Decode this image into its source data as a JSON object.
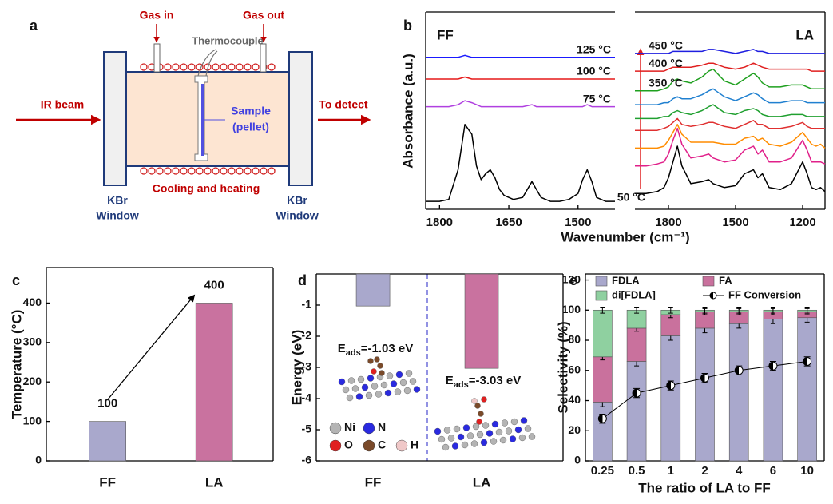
{
  "panel_labels": [
    "a",
    "b",
    "c",
    "d",
    "e"
  ],
  "diagram": {
    "gas_in": "Gas in",
    "gas_out": "Gas out",
    "thermocouple": "Thermocouple",
    "ir_beam": "IR beam",
    "sample": "Sample",
    "pellet": "(pellet)",
    "to_detect": "To detect",
    "cooling": "Cooling and heating",
    "kbr_left": "KBr",
    "window_left": "Window",
    "kbr_right": "KBr",
    "window_right": "Window"
  },
  "chart_data": [
    {
      "type": "line",
      "title": "FF",
      "ylabel": "Absorbance (a.u.)",
      "xlabel": "Wavenumber (cm⁻¹)",
      "xlim": [
        1830,
        1420
      ],
      "xticks": [
        1800,
        1650,
        1500
      ],
      "ylim": [
        0,
        100
      ],
      "x": [
        1830,
        1800,
        1780,
        1760,
        1745,
        1730,
        1720,
        1710,
        1700,
        1690,
        1680,
        1670,
        1660,
        1640,
        1620,
        1600,
        1590,
        1580,
        1570,
        1560,
        1540,
        1520,
        1500,
        1490,
        1480,
        1470,
        1460,
        1440,
        1420
      ],
      "series": [
        {
          "color": "#000000",
          "values": [
            4,
            4,
            5,
            20,
            43,
            38,
            22,
            15,
            18,
            20,
            16,
            10,
            7,
            5,
            6,
            14,
            10,
            6,
            5,
            4,
            4,
            5,
            8,
            15,
            20,
            14,
            6,
            4,
            4
          ]
        },
        {
          "name": "75 °C",
          "color": "#b040e0",
          "values": [
            52,
            52,
            52,
            53,
            55,
            54,
            53,
            52,
            52,
            52,
            52,
            52,
            52,
            52,
            52,
            53,
            52,
            52,
            52,
            52,
            52,
            52,
            52,
            52,
            53,
            52,
            52,
            52,
            52
          ]
        },
        {
          "name": "100 °C",
          "color": "#e61919",
          "values": [
            66,
            66,
            66,
            66,
            67,
            66,
            66,
            66,
            66,
            66,
            66,
            66,
            66,
            66,
            66,
            66,
            66,
            66,
            66,
            66,
            66,
            66,
            66,
            66,
            66,
            66,
            66,
            66,
            66
          ]
        },
        {
          "name": "125 °C",
          "color": "#1a1aff",
          "values": [
            77,
            77,
            77,
            77,
            78,
            77,
            77,
            77,
            77,
            77,
            77,
            77,
            77,
            77,
            77,
            77,
            77,
            77,
            77,
            77,
            77,
            77,
            77,
            77,
            77,
            77,
            77,
            77,
            77
          ]
        }
      ]
    },
    {
      "type": "line",
      "title": "LA",
      "xlim": [
        1950,
        1100
      ],
      "xticks": [
        1800,
        1500,
        1200
      ],
      "ylim": [
        0,
        100
      ],
      "x": [
        1950,
        1900,
        1850,
        1820,
        1800,
        1780,
        1760,
        1740,
        1700,
        1650,
        1620,
        1600,
        1550,
        1500,
        1460,
        1420,
        1400,
        1380,
        1350,
        1300,
        1250,
        1200,
        1180,
        1160,
        1140,
        1120,
        1100
      ],
      "series": [
        {
          "name": "50 °C",
          "color": "#000000",
          "values": [
            8,
            8,
            9,
            11,
            16,
            24,
            32,
            22,
            13,
            14,
            15,
            13,
            11,
            12,
            18,
            20,
            16,
            18,
            11,
            10,
            13,
            24,
            18,
            11,
            10,
            11,
            9
          ]
        },
        {
          "color": "#e0208a",
          "values": [
            22,
            22,
            23,
            24,
            28,
            35,
            41,
            33,
            26,
            27,
            28,
            26,
            24,
            25,
            30,
            32,
            28,
            30,
            24,
            24,
            26,
            35,
            30,
            24,
            24,
            24,
            23
          ]
        },
        {
          "color": "#ff8c00",
          "values": [
            31,
            31,
            31,
            32,
            35,
            39,
            43,
            38,
            34,
            34,
            34,
            34,
            33,
            33,
            36,
            37,
            35,
            36,
            33,
            32,
            34,
            39,
            36,
            33,
            32,
            33,
            31
          ]
        },
        {
          "color": "#e03030",
          "values": [
            40,
            40,
            40,
            41,
            42,
            44,
            46,
            43,
            42,
            43,
            44,
            44,
            42,
            41,
            43,
            45,
            43,
            43,
            41,
            41,
            42,
            44,
            42,
            41,
            41,
            41,
            41
          ]
        },
        {
          "color": "#20a030",
          "values": [
            46,
            46,
            46,
            47,
            47,
            49,
            50,
            49,
            48,
            50,
            52,
            53,
            49,
            48,
            50,
            51,
            50,
            48,
            47,
            47,
            48,
            48,
            47,
            47,
            47,
            47,
            47
          ]
        },
        {
          "color": "#2080d0",
          "values": [
            53,
            53,
            53,
            54,
            54,
            56,
            57,
            56,
            56,
            58,
            60,
            61,
            57,
            55,
            57,
            59,
            58,
            56,
            54,
            54,
            55,
            55,
            54,
            54,
            54,
            54,
            54
          ]
        },
        {
          "name": "350 °C",
          "color": "#1fa01f",
          "values": [
            60,
            60,
            60,
            61,
            62,
            65,
            66,
            65,
            64,
            67,
            70,
            71,
            65,
            63,
            66,
            69,
            67,
            64,
            62,
            62,
            63,
            63,
            62,
            61,
            61,
            61,
            61
          ]
        },
        {
          "name": "400 °C",
          "color": "#e01f1f",
          "values": [
            70,
            70,
            70,
            70,
            71,
            72,
            72,
            72,
            72,
            73,
            74,
            74,
            72,
            71,
            72,
            74,
            73,
            72,
            71,
            71,
            71,
            71,
            71,
            70,
            70,
            70,
            70
          ]
        },
        {
          "name": "450 °C",
          "color": "#1f1fe0",
          "values": [
            79,
            79,
            79,
            79,
            79,
            80,
            80,
            80,
            80,
            80,
            81,
            81,
            80,
            79,
            80,
            81,
            80,
            80,
            79,
            79,
            79,
            79,
            79,
            79,
            79,
            79,
            79
          ]
        }
      ]
    },
    {
      "type": "bar",
      "ylabel": "Temperature (°C)",
      "categories": [
        "FF",
        "LA"
      ],
      "values": [
        100,
        400
      ],
      "colors": [
        "#a9a8cc",
        "#c9729f"
      ],
      "ylim": [
        0,
        490
      ],
      "yticks": [
        0,
        100,
        200,
        300,
        400
      ]
    },
    {
      "type": "bar",
      "ylabel": "Energy (eV)",
      "categories": [
        "FF",
        "LA"
      ],
      "values": [
        -1.03,
        -3.03
      ],
      "colors": [
        "#a9a8cc",
        "#c9729f"
      ],
      "ylim": [
        -6,
        0
      ],
      "yticks": [
        -1,
        -2,
        -3,
        -4,
        -5,
        -6
      ],
      "annotations": [
        {
          "text": "E",
          "sub": "ads",
          "rest": "=-1.03 eV"
        },
        {
          "text": "E",
          "sub": "ads",
          "rest": "=-3.03 eV"
        }
      ],
      "atoms": [
        {
          "name": "Ni",
          "color": "#b4b4b4"
        },
        {
          "name": "N",
          "color": "#2a2ae0"
        },
        {
          "name": "O",
          "color": "#e02020"
        },
        {
          "name": "C",
          "color": "#7a4a2a"
        },
        {
          "name": "H",
          "color": "#f0c8c8"
        }
      ]
    },
    {
      "type": "bar",
      "stacked": true,
      "ylabel": "Selectivity (%)",
      "xlabel": "The ratio of LA to FF",
      "categories": [
        "0.25",
        "0.5",
        "1",
        "2",
        "4",
        "6",
        "10"
      ],
      "ylim": [
        0,
        124
      ],
      "yticks": [
        0,
        20,
        40,
        60,
        80,
        100,
        120
      ],
      "series": [
        {
          "name": "FDLA",
          "color": "#a9a8cc",
          "values": [
            39,
            66,
            83,
            88,
            91,
            94,
            95
          ],
          "errors": [
            3,
            3,
            3,
            3,
            3,
            3,
            3
          ]
        },
        {
          "name": "FA",
          "color": "#c9719d",
          "values": [
            30,
            22,
            14,
            11,
            8,
            5,
            4
          ],
          "errors": [
            2,
            2,
            2,
            2,
            2,
            2,
            2
          ]
        },
        {
          "name": "di[FDLA]",
          "color": "#8fd0a0",
          "values": [
            31,
            12,
            3,
            1,
            1,
            1,
            1
          ],
          "errors": [
            2,
            2,
            2,
            2,
            2,
            2,
            2
          ]
        },
        {
          "name": "FF Conversion",
          "type": "line",
          "color": "#000000",
          "values": [
            28,
            45,
            50,
            55,
            60,
            63,
            66
          ],
          "errors": [
            3,
            3,
            3,
            3,
            3,
            3,
            3
          ]
        }
      ]
    }
  ]
}
